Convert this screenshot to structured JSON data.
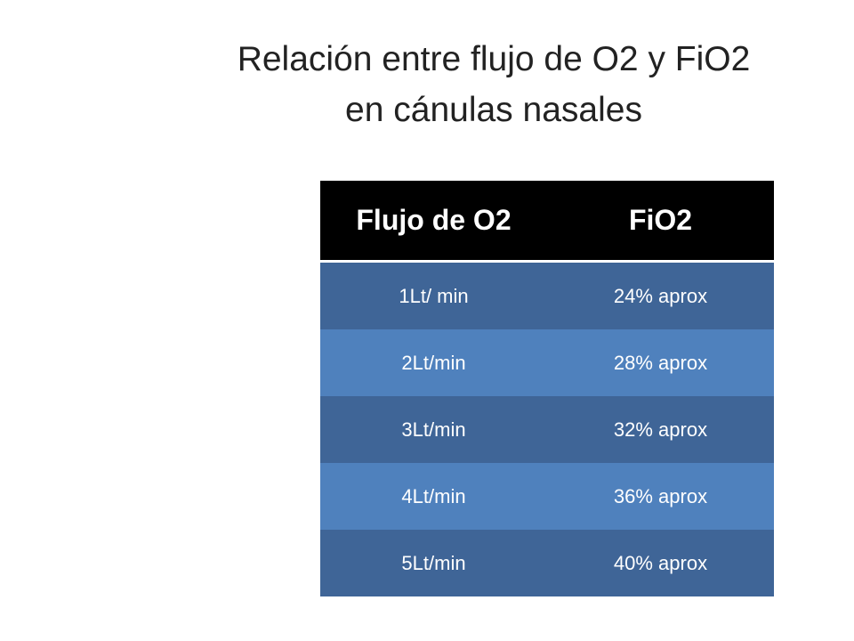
{
  "header": {
    "title": "Relación entre flujo de O2 y FiO2 en cánulas nasales"
  },
  "table": {
    "headers": [
      "Flujo de O2",
      "FiO2"
    ],
    "rows": [
      [
        "1Lt/ min",
        "24% aprox"
      ],
      [
        "2Lt/min",
        "28% aprox"
      ],
      [
        "3Lt/min",
        "32% aprox"
      ],
      [
        "4Lt/min",
        "36% aprox"
      ],
      [
        "5Lt/min",
        "40% aprox"
      ]
    ]
  }
}
